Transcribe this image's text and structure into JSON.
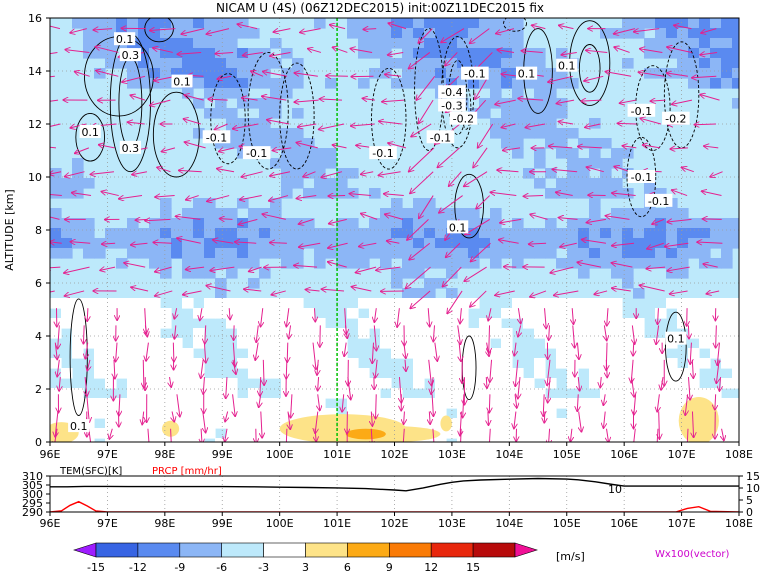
{
  "title": "NICAM U (4S) (06Z12DEC2015) init:00Z11DEC2015 fix",
  "chart_data": [
    {
      "type": "heatmap",
      "title": "NICAM U (4S) (06Z12DEC2015) init:00Z11DEC2015 fix",
      "ylabel": "ALTITUDE [km]",
      "xlim": [
        96,
        108
      ],
      "ylim": [
        0,
        16
      ],
      "x_ticks": [
        "96E",
        "97E",
        "98E",
        "99E",
        "100E",
        "101E",
        "102E",
        "103E",
        "104E",
        "105E",
        "106E",
        "107E",
        "108E"
      ],
      "y_ticks": [
        "0",
        "2",
        "4",
        "6",
        "8",
        "10",
        "12",
        "14",
        "16"
      ],
      "grid": true,
      "marked_longitude": 101,
      "contour_labels": [
        {
          "text": "0.1",
          "x": 97.3,
          "y": 15.2
        },
        {
          "text": "0.3",
          "x": 97.4,
          "y": 14.6
        },
        {
          "text": "0.1",
          "x": 98.3,
          "y": 13.6
        },
        {
          "text": "0.1",
          "x": 96.7,
          "y": 11.7
        },
        {
          "text": "0.3",
          "x": 97.4,
          "y": 11.1
        },
        {
          "text": "-0.1",
          "x": 98.9,
          "y": 11.5
        },
        {
          "text": "-0.1",
          "x": 99.6,
          "y": 10.9
        },
        {
          "text": "-0.1",
          "x": 101.8,
          "y": 10.9
        },
        {
          "text": "-0.1",
          "x": 103.4,
          "y": 13.9
        },
        {
          "text": "-0.4",
          "x": 103.0,
          "y": 13.2
        },
        {
          "text": "-0.3",
          "x": 103.0,
          "y": 12.7
        },
        {
          "text": "-0.2",
          "x": 103.2,
          "y": 12.2
        },
        {
          "text": "-0.1",
          "x": 102.8,
          "y": 11.5
        },
        {
          "text": "0.1",
          "x": 104.3,
          "y": 13.9
        },
        {
          "text": "0.1",
          "x": 105.0,
          "y": 14.2
        },
        {
          "text": "-0.1",
          "x": 106.3,
          "y": 12.5
        },
        {
          "text": "-0.2",
          "x": 106.9,
          "y": 12.2
        },
        {
          "text": "-0.1",
          "x": 106.3,
          "y": 10.0
        },
        {
          "text": "-0.1",
          "x": 106.6,
          "y": 9.1
        },
        {
          "text": "0.1",
          "x": 103.1,
          "y": 8.1
        },
        {
          "text": "0.1",
          "x": 106.9,
          "y": 3.9
        },
        {
          "text": "0.1",
          "x": 96.5,
          "y": 0.6
        }
      ],
      "vector_caption": "Wx100(vector)"
    },
    {
      "type": "line",
      "xlim": [
        96,
        108
      ],
      "x_ticks": [
        "96E",
        "97E",
        "98E",
        "99E",
        "100E",
        "101E",
        "102E",
        "103E",
        "104E",
        "105E",
        "106E",
        "107E",
        "108E"
      ],
      "series": [
        {
          "name": "TEM(SFC)[K]",
          "axis": "left",
          "ylim": [
            290,
            310
          ],
          "y_ticks": [
            "310",
            "305",
            "300",
            "295",
            "290"
          ],
          "color": "#000000",
          "x": [
            96,
            96.3,
            96.6,
            97,
            97.5,
            98,
            98.5,
            99,
            99.5,
            100,
            100.5,
            101,
            101.5,
            102,
            102.2,
            102.5,
            102.8,
            103,
            103.2,
            103.5,
            104,
            104.5,
            105,
            105.2,
            105.5,
            105.8,
            106,
            106.5,
            107,
            107.5,
            108
          ],
          "y": [
            304,
            304,
            304.2,
            304.2,
            304.1,
            304.1,
            304.1,
            304.1,
            304,
            303.8,
            303.6,
            303.4,
            303,
            302.2,
            301.8,
            303.4,
            305.4,
            306.5,
            307.3,
            307.8,
            308.2,
            308.6,
            308.3,
            307.9,
            306.8,
            305.3,
            304.4,
            304.4,
            304.4,
            304.4,
            304.4
          ]
        },
        {
          "name": "PRCP [mm/hr]",
          "axis": "right",
          "ylim": [
            0,
            15
          ],
          "y_ticks": [
            "15",
            "10",
            "5",
            "0"
          ],
          "color": "#ff0000",
          "x": [
            96,
            96.2,
            96.35,
            96.5,
            96.65,
            96.8,
            97,
            98,
            99,
            100,
            101,
            102,
            103,
            104,
            105,
            106,
            106.9,
            107.1,
            107.3,
            107.5,
            108
          ],
          "y": [
            0,
            0.5,
            2.8,
            4.3,
            2.5,
            0.4,
            0,
            0,
            0,
            0,
            0,
            0,
            0,
            0,
            0,
            0,
            0,
            1.5,
            2.2,
            0.3,
            0
          ]
        }
      ],
      "annotation": "10"
    }
  ],
  "colorbar": {
    "ticks": [
      "-15",
      "-12",
      "-9",
      "-6",
      "-3",
      "3",
      "6",
      "9",
      "12",
      "15"
    ],
    "unit": "[m/s]",
    "colors": [
      "#9e1cff",
      "#3764e3",
      "#5a8af0",
      "#8cb6f6",
      "#bde9fb",
      "#ffffff",
      "#fde388",
      "#fcaa16",
      "#fa7b06",
      "#e8270c",
      "#b70a0a",
      "#f01096"
    ]
  },
  "colors": {
    "vector": "#e4208f",
    "marker_line": "#00c000",
    "temperature": "#000000",
    "precipitation": "#ff0000"
  }
}
